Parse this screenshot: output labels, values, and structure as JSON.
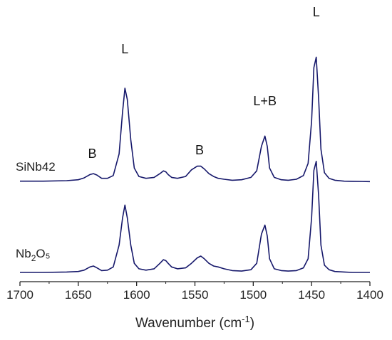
{
  "chart_data": {
    "type": "line",
    "xlabel": "Wavenumber (cm⁻¹)",
    "xlim": [
      1700,
      1400
    ],
    "xticks": [
      1700,
      1650,
      1600,
      1550,
      1500,
      1450,
      1400
    ],
    "line_color": "#16186b",
    "series": [
      {
        "name": "SiNb42",
        "x": [
          1700,
          1680,
          1660,
          1650,
          1645,
          1640,
          1637,
          1634,
          1630,
          1625,
          1620,
          1615,
          1612,
          1610,
          1608,
          1605,
          1602,
          1598,
          1592,
          1585,
          1580,
          1577,
          1575,
          1573,
          1570,
          1565,
          1558,
          1553,
          1548,
          1545,
          1542,
          1538,
          1534,
          1530,
          1525,
          1518,
          1510,
          1502,
          1497,
          1493,
          1490,
          1488,
          1486,
          1482,
          1476,
          1470,
          1463,
          1457,
          1453,
          1450,
          1448,
          1446,
          1444,
          1442,
          1439,
          1435,
          1430,
          1422,
          1415,
          1400
        ],
        "y": [
          0.01,
          0.01,
          0.015,
          0.025,
          0.045,
          0.08,
          0.09,
          0.075,
          0.04,
          0.04,
          0.07,
          0.3,
          0.75,
          1.0,
          0.88,
          0.45,
          0.15,
          0.06,
          0.04,
          0.05,
          0.09,
          0.12,
          0.11,
          0.08,
          0.05,
          0.04,
          0.06,
          0.13,
          0.17,
          0.17,
          0.14,
          0.09,
          0.06,
          0.04,
          0.03,
          0.02,
          0.025,
          0.05,
          0.12,
          0.38,
          0.49,
          0.38,
          0.15,
          0.05,
          0.025,
          0.02,
          0.03,
          0.07,
          0.2,
          0.65,
          1.22,
          1.33,
          0.9,
          0.35,
          0.1,
          0.04,
          0.02,
          0.01,
          0.008,
          0.005
        ]
      },
      {
        "name": "Nb₂O₅",
        "x": [
          1700,
          1680,
          1660,
          1650,
          1645,
          1640,
          1637,
          1634,
          1630,
          1625,
          1620,
          1615,
          1612,
          1610,
          1608,
          1605,
          1602,
          1598,
          1592,
          1585,
          1580,
          1577,
          1575,
          1573,
          1570,
          1565,
          1558,
          1553,
          1548,
          1545,
          1542,
          1538,
          1534,
          1530,
          1525,
          1518,
          1510,
          1502,
          1497,
          1493,
          1490,
          1488,
          1486,
          1482,
          1476,
          1470,
          1463,
          1457,
          1453,
          1450,
          1448,
          1446,
          1444,
          1442,
          1439,
          1435,
          1430,
          1422,
          1415,
          1400
        ],
        "y": [
          0.0,
          0.0,
          0.005,
          0.01,
          0.025,
          0.06,
          0.07,
          0.05,
          0.02,
          0.025,
          0.06,
          0.3,
          0.6,
          0.74,
          0.6,
          0.3,
          0.1,
          0.04,
          0.025,
          0.04,
          0.1,
          0.14,
          0.13,
          0.1,
          0.06,
          0.04,
          0.05,
          0.1,
          0.16,
          0.18,
          0.15,
          0.1,
          0.07,
          0.06,
          0.04,
          0.02,
          0.015,
          0.03,
          0.1,
          0.42,
          0.52,
          0.4,
          0.15,
          0.04,
          0.02,
          0.015,
          0.02,
          0.05,
          0.15,
          0.6,
          1.12,
          1.22,
          0.85,
          0.3,
          0.08,
          0.03,
          0.01,
          0.005,
          0.0,
          0.0
        ]
      }
    ],
    "annotations": [
      {
        "text": "L",
        "x": 1610
      },
      {
        "text": "B",
        "x": 1638
      },
      {
        "text": "B",
        "x": 1546
      },
      {
        "text": "L+B",
        "x": 1490
      },
      {
        "text": "L",
        "x": 1446
      }
    ]
  }
}
